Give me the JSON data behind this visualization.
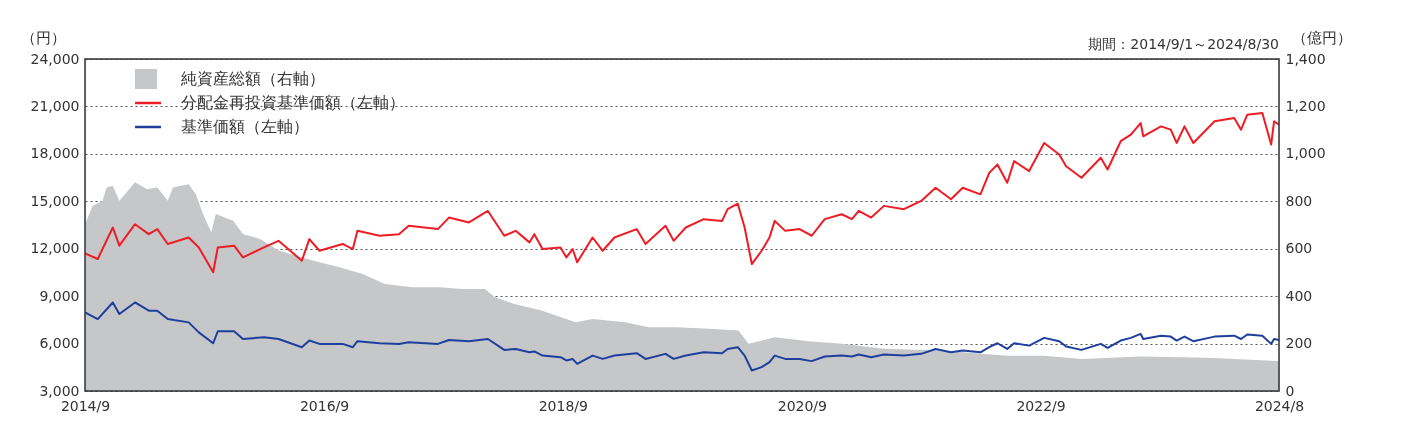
{
  "chart_data": {
    "type": "line",
    "ylabel": "（円）",
    "y2label": "（億円）",
    "annotations": [
      "期間：2014/9/1～2024/8/30"
    ],
    "xlim": [
      "2014-09-01",
      "2024-08-30"
    ],
    "xticks": [
      {
        "value": "2014-09-01",
        "label": "2014/9"
      },
      {
        "value": "2016-09-01",
        "label": "2016/9"
      },
      {
        "value": "2018-09-01",
        "label": "2018/9"
      },
      {
        "value": "2020-09-01",
        "label": "2020/9"
      },
      {
        "value": "2022-09-01",
        "label": "2022/9"
      },
      {
        "value": "2024-08-30",
        "label": "2024/8"
      }
    ],
    "ylim": [
      3000,
      24000
    ],
    "yticks": [
      {
        "value": 3000,
        "label": "3,000"
      },
      {
        "value": 6000,
        "label": "6,000"
      },
      {
        "value": 9000,
        "label": "9,000"
      },
      {
        "value": 12000,
        "label": "12,000"
      },
      {
        "value": 15000,
        "label": "15,000"
      },
      {
        "value": 18000,
        "label": "18,000"
      },
      {
        "value": 21000,
        "label": "21,000"
      },
      {
        "value": 24000,
        "label": "24,000"
      }
    ],
    "y2lim": [
      0,
      1400
    ],
    "y2ticks": [
      {
        "value": 0,
        "label": "0"
      },
      {
        "value": 200,
        "label": "200"
      },
      {
        "value": 400,
        "label": "400"
      },
      {
        "value": 600,
        "label": "600"
      },
      {
        "value": 800,
        "label": "800"
      },
      {
        "value": 1000,
        "label": "1,000"
      },
      {
        "value": 1200,
        "label": "1,200"
      },
      {
        "value": 1400,
        "label": "1,400"
      }
    ],
    "grid": "y",
    "legend": "top left",
    "line_style": "solid",
    "series": [
      {
        "name": "純資産総額（右軸）",
        "type": "area",
        "axis": "y2",
        "color": "#c6c7c9",
        "x": [
          "2014-09-01",
          "2014-09-25",
          "2014-10-25",
          "2014-11-06",
          "2014-11-25",
          "2014-12-15",
          "2015-02-01",
          "2015-03-10",
          "2015-04-10",
          "2015-05-12",
          "2015-05-28",
          "2015-07-15",
          "2015-08-06",
          "2015-08-28",
          "2015-09-22",
          "2015-10-06",
          "2015-11-28",
          "2015-12-28",
          "2016-02-18",
          "2016-04-15",
          "2016-07-28",
          "2016-10-18",
          "2016-12-28",
          "2017-03-06",
          "2017-05-28",
          "2017-08-18",
          "2017-10-28",
          "2018-01-06",
          "2018-02-06",
          "2018-04-06",
          "2018-06-28",
          "2018-10-10",
          "2018-12-01",
          "2019-03-10",
          "2019-05-22",
          "2019-08-12",
          "2019-11-22",
          "2020-02-20",
          "2020-03-22",
          "2020-06-10",
          "2020-09-22",
          "2021-01-01",
          "2021-05-10",
          "2021-11-01",
          "2022-05-22",
          "2022-09-12",
          "2023-01-04",
          "2023-07-04",
          "2024-01-25",
          "2024-08-30"
        ],
        "values": [
          704,
          781,
          802,
          858,
          865,
          802,
          880,
          851,
          858,
          802,
          858,
          872,
          830,
          746,
          669,
          746,
          718,
          662,
          641,
          592,
          550,
          522,
          493,
          451,
          437,
          437,
          430,
          430,
          395,
          367,
          339,
          290,
          304,
          290,
          269,
          269,
          262,
          255,
          199,
          227,
          210,
          199,
          178,
          171,
          149,
          149,
          135,
          145,
          140,
          126
        ]
      },
      {
        "name": "分配金再投資基準価額（左軸）",
        "color": "#ee1c25",
        "x": [
          "2014-09-01",
          "2014-10-10",
          "2014-11-25",
          "2014-12-15",
          "2015-02-01",
          "2015-03-15",
          "2015-04-10",
          "2015-05-12",
          "2015-07-15",
          "2015-08-15",
          "2015-09-28",
          "2015-10-12",
          "2015-12-01",
          "2015-12-28",
          "2016-03-01",
          "2016-04-15",
          "2016-06-25",
          "2016-07-18",
          "2016-08-18",
          "2016-10-28",
          "2016-11-28",
          "2016-12-12",
          "2017-02-18",
          "2017-04-18",
          "2017-05-18",
          "2017-08-15",
          "2017-09-18",
          "2017-11-18",
          "2018-01-15",
          "2018-03-06",
          "2018-04-10",
          "2018-05-22",
          "2018-06-06",
          "2018-07-01",
          "2018-08-25",
          "2018-09-12",
          "2018-10-01",
          "2018-10-15",
          "2018-12-01",
          "2019-01-01",
          "2019-02-06",
          "2019-04-15",
          "2019-05-12",
          "2019-07-12",
          "2019-08-06",
          "2019-09-12",
          "2019-11-06",
          "2020-01-01",
          "2020-01-18",
          "2020-02-18",
          "2020-03-10",
          "2020-04-01",
          "2020-05-01",
          "2020-05-25",
          "2020-06-10",
          "2020-07-12",
          "2020-08-25",
          "2020-10-01",
          "2020-11-10",
          "2021-01-01",
          "2021-02-01",
          "2021-02-22",
          "2021-04-01",
          "2021-05-10",
          "2021-07-10",
          "2021-09-01",
          "2021-10-15",
          "2021-12-01",
          "2022-01-06",
          "2022-03-01",
          "2022-03-28",
          "2022-04-22",
          "2022-05-22",
          "2022-06-12",
          "2022-07-28",
          "2022-09-12",
          "2022-10-28",
          "2022-11-18",
          "2023-01-04",
          "2023-03-04",
          "2023-03-25",
          "2023-05-04",
          "2023-06-04",
          "2023-07-04",
          "2023-07-12",
          "2023-09-04",
          "2023-10-04",
          "2023-10-22",
          "2023-11-15",
          "2023-12-12",
          "2024-02-15",
          "2024-04-15",
          "2024-05-06",
          "2024-05-25",
          "2024-07-10",
          "2024-08-06",
          "2024-08-15",
          "2024-08-30"
        ],
        "values": [
          11700,
          11350,
          13340,
          12190,
          13550,
          12920,
          13240,
          12300,
          12710,
          12080,
          10510,
          12080,
          12190,
          11450,
          12080,
          12500,
          11240,
          12610,
          11870,
          12300,
          11980,
          13130,
          12820,
          12920,
          13450,
          13240,
          13970,
          13660,
          14390,
          12820,
          13130,
          12400,
          12920,
          11980,
          12080,
          11450,
          11980,
          11140,
          12710,
          11870,
          12710,
          13240,
          12300,
          13450,
          12500,
          13340,
          13870,
          13760,
          14500,
          14850,
          13340,
          11030,
          11870,
          12710,
          13760,
          13130,
          13240,
          12820,
          13870,
          14180,
          13870,
          14390,
          13970,
          14710,
          14500,
          15020,
          15860,
          15130,
          15860,
          15440,
          16800,
          17330,
          16170,
          17540,
          16910,
          18690,
          17960,
          17220,
          16490,
          17750,
          17010,
          18800,
          19220,
          19950,
          19110,
          19740,
          19530,
          18690,
          19740,
          18690,
          20060,
          20270,
          19530,
          20480,
          20580,
          18590,
          20060,
          19850
        ]
      },
      {
        "name": "基準価額（左軸）",
        "color": "#1f3f9c",
        "x": [
          "2014-09-01",
          "2014-10-10",
          "2014-11-25",
          "2014-12-15",
          "2015-02-01",
          "2015-03-15",
          "2015-04-10",
          "2015-05-12",
          "2015-07-15",
          "2015-08-15",
          "2015-09-28",
          "2015-10-12",
          "2015-12-01",
          "2015-12-28",
          "2016-03-01",
          "2016-04-15",
          "2016-06-25",
          "2016-07-18",
          "2016-08-18",
          "2016-10-28",
          "2016-11-28",
          "2016-12-12",
          "2017-02-18",
          "2017-04-18",
          "2017-05-18",
          "2017-08-15",
          "2017-09-18",
          "2017-11-18",
          "2018-01-15",
          "2018-03-06",
          "2018-04-10",
          "2018-05-22",
          "2018-06-06",
          "2018-07-01",
          "2018-08-25",
          "2018-09-12",
          "2018-10-01",
          "2018-10-15",
          "2018-12-01",
          "2019-01-01",
          "2019-02-06",
          "2019-04-15",
          "2019-05-12",
          "2019-07-12",
          "2019-08-06",
          "2019-09-12",
          "2019-11-06",
          "2020-01-01",
          "2020-01-18",
          "2020-02-18",
          "2020-03-10",
          "2020-04-01",
          "2020-05-01",
          "2020-05-25",
          "2020-06-10",
          "2020-07-12",
          "2020-08-25",
          "2020-10-01",
          "2020-11-10",
          "2021-01-01",
          "2021-02-01",
          "2021-02-22",
          "2021-04-01",
          "2021-05-10",
          "2021-07-10",
          "2021-09-01",
          "2021-10-15",
          "2021-12-01",
          "2022-01-06",
          "2022-03-01",
          "2022-03-28",
          "2022-04-22",
          "2022-05-22",
          "2022-06-12",
          "2022-07-28",
          "2022-09-12",
          "2022-10-28",
          "2022-11-18",
          "2023-01-04",
          "2023-03-04",
          "2023-03-25",
          "2023-05-04",
          "2023-06-04",
          "2023-07-04",
          "2023-07-12",
          "2023-09-04",
          "2023-10-04",
          "2023-10-22",
          "2023-11-15",
          "2023-12-12",
          "2024-02-15",
          "2024-04-15",
          "2024-05-06",
          "2024-05-25",
          "2024-07-10",
          "2024-08-06",
          "2024-08-15",
          "2024-08-30"
        ],
        "values": [
          7970,
          7550,
          8600,
          7870,
          8600,
          8080,
          8080,
          7550,
          7340,
          6710,
          6020,
          6780,
          6780,
          6290,
          6400,
          6290,
          5770,
          6190,
          5980,
          5980,
          5770,
          6150,
          6020,
          5980,
          6080,
          5980,
          6230,
          6150,
          6290,
          5600,
          5660,
          5450,
          5500,
          5240,
          5140,
          4930,
          5030,
          4720,
          5240,
          5030,
          5240,
          5390,
          5030,
          5350,
          5030,
          5240,
          5450,
          5390,
          5660,
          5770,
          5240,
          4300,
          4510,
          4830,
          5240,
          5030,
          5030,
          4890,
          5180,
          5240,
          5180,
          5310,
          5140,
          5310,
          5240,
          5350,
          5660,
          5450,
          5560,
          5450,
          5770,
          6020,
          5660,
          6020,
          5870,
          6360,
          6150,
          5810,
          5600,
          5980,
          5730,
          6190,
          6360,
          6610,
          6290,
          6500,
          6440,
          6190,
          6440,
          6150,
          6440,
          6500,
          6290,
          6570,
          6500,
          5980,
          6290,
          6230
        ]
      }
    ]
  }
}
